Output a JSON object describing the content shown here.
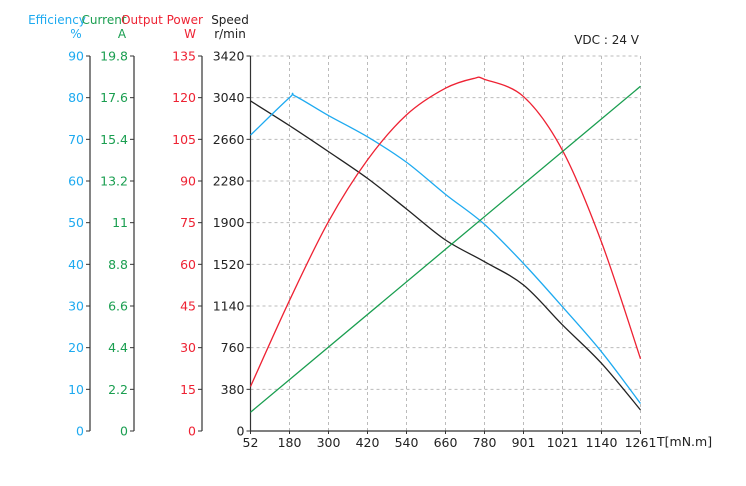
{
  "chart_data": {
    "type": "line",
    "annotation": "VDC : 24 V",
    "xlabel": "T[mN.m]",
    "x_ticks": [
      52,
      180,
      300,
      420,
      540,
      660,
      780,
      901,
      1021,
      1140,
      1261
    ],
    "xlim": [
      52,
      1261
    ],
    "grid": true,
    "axes": [
      {
        "id": "efficiency",
        "title": "Efficiency",
        "unit": "%",
        "color": "#1eaaf0",
        "ylim": [
          0,
          90
        ],
        "ticks": [
          "0",
          "10",
          "20",
          "30",
          "40",
          "50",
          "60",
          "70",
          "80",
          "90"
        ]
      },
      {
        "id": "current",
        "title": "Current",
        "unit": "A",
        "color": "#1a9e50",
        "ylim": [
          0,
          19.8
        ],
        "ticks": [
          "0",
          "2.2",
          "4.4",
          "6.6",
          "8.8",
          "11",
          "13.2",
          "15.4",
          "17.6",
          "19.8"
        ]
      },
      {
        "id": "power",
        "title": "Output Power",
        "unit": "W",
        "color": "#ee2233",
        "ylim": [
          0,
          135
        ],
        "ticks": [
          "0",
          "15",
          "30",
          "45",
          "60",
          "75",
          "90",
          "105",
          "120",
          "135"
        ]
      },
      {
        "id": "speed",
        "title": "Speed",
        "unit": "r/min",
        "color": "#222222",
        "ylim": [
          0,
          3420
        ],
        "ticks": [
          "0",
          "380",
          "760",
          "1140",
          "1520",
          "1900",
          "2280",
          "2660",
          "3040",
          "3420"
        ]
      }
    ],
    "series": [
      {
        "axis": "speed",
        "color": "#222222",
        "x": [
          52,
          180,
          300,
          420,
          540,
          660,
          780,
          901,
          1021,
          1140,
          1261
        ],
        "y": [
          3010,
          2785,
          2548,
          2304,
          2025,
          1742,
          1544,
          1331,
          967,
          617,
          192
        ]
      },
      {
        "axis": "efficiency",
        "color": "#1eaaf0",
        "x": [
          52,
          180,
          197,
          300,
          420,
          540,
          660,
          780,
          901,
          1021,
          1140,
          1261
        ],
        "y": [
          71,
          80,
          80.4,
          75.7,
          70.6,
          64.5,
          56.8,
          49.6,
          40.2,
          29.8,
          19,
          6.6
        ]
      },
      {
        "axis": "power",
        "color": "#ee2233",
        "x": [
          52,
          180,
          300,
          420,
          540,
          660,
          750,
          780,
          901,
          1021,
          1140,
          1261
        ],
        "y": [
          16,
          47,
          75.4,
          97.6,
          113.8,
          123.4,
          127,
          126.6,
          120.4,
          101,
          68,
          26
        ]
      },
      {
        "axis": "current",
        "color": "#1a9e50",
        "x": [
          52,
          1261
        ],
        "y": [
          0.99,
          18.2
        ]
      }
    ]
  }
}
